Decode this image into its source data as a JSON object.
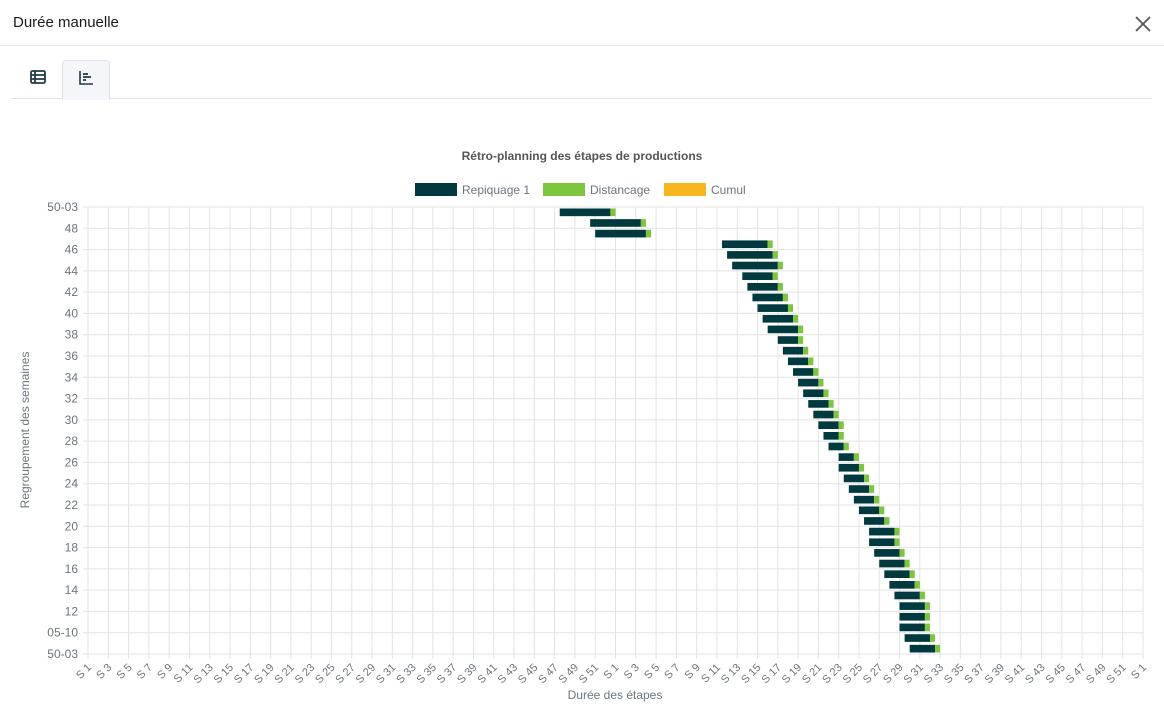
{
  "window": {
    "title": "Durée manuelle"
  },
  "tabs": [
    {
      "icon": "table-icon",
      "active": false
    },
    {
      "icon": "bar-chart-icon",
      "active": true
    }
  ],
  "colors": {
    "repiquage": "#003a40",
    "distancage": "#7dc63c",
    "cumul": "#f9b51d",
    "grid": "#e3e3e3",
    "text": "#6c757d"
  },
  "chart_data": {
    "type": "bar",
    "orientation": "horizontal-floating",
    "title": "Rétro-planning des étapes de productions",
    "xlabel": "Durée des étapes",
    "ylabel": "Regroupement des semaines",
    "legend": [
      {
        "name": "Repiquage 1"
      },
      {
        "name": "Distancage"
      },
      {
        "name": "Cumul"
      }
    ],
    "legend_position": "top-center",
    "grid": true,
    "x_ticks": [
      "S 1",
      "S 3",
      "S 5",
      "S 7",
      "S 9",
      "S 11",
      "S 13",
      "S 15",
      "S 17",
      "S 19",
      "S 21",
      "S 23",
      "S 25",
      "S 27",
      "S 29",
      "S 31",
      "S 33",
      "S 35",
      "S 37",
      "S 39",
      "S 41",
      "S 43",
      "S 45",
      "S 47",
      "S 49",
      "S 51",
      "S 1",
      "S 3",
      "S 5",
      "S 7",
      "S 9",
      "S 11",
      "S 13",
      "S 15",
      "S 17",
      "S 19",
      "S 21",
      "S 23",
      "S 25",
      "S 27",
      "S 29",
      "S 31",
      "S 33",
      "S 35",
      "S 37",
      "S 39",
      "S 41",
      "S 43",
      "S 45",
      "S 47",
      "S 49",
      "S 51",
      "S 1"
    ],
    "y_ticks": [
      "50-03",
      "48",
      "46",
      "44",
      "42",
      "40",
      "38",
      "36",
      "34",
      "32",
      "30",
      "28",
      "26",
      "24",
      "22",
      "20",
      "18",
      "16",
      "14",
      "12",
      "05-10",
      "50-03"
    ],
    "rows": [
      {
        "repiquage": [
          46.5,
          51.5
        ],
        "distancage": [
          51.5,
          52
        ]
      },
      {
        "repiquage": [
          49.5,
          54.5
        ],
        "distancage": [
          54.5,
          55
        ]
      },
      {
        "repiquage": [
          50,
          55
        ],
        "distancage": [
          55,
          55.5
        ]
      },
      {
        "repiquage": [
          62.5,
          67
        ],
        "distancage": [
          67,
          67.5
        ]
      },
      {
        "repiquage": [
          63,
          67.5
        ],
        "distancage": [
          67.5,
          68
        ]
      },
      {
        "repiquage": [
          63.5,
          68
        ],
        "distancage": [
          68,
          68.5
        ]
      },
      {
        "repiquage": [
          64.5,
          67.5
        ],
        "distancage": [
          67.5,
          68
        ]
      },
      {
        "repiquage": [
          65,
          68
        ],
        "distancage": [
          68,
          68.5
        ]
      },
      {
        "repiquage": [
          65.5,
          68.5
        ],
        "distancage": [
          68.5,
          69
        ]
      },
      {
        "repiquage": [
          66,
          69
        ],
        "distancage": [
          69,
          69.5
        ]
      },
      {
        "repiquage": [
          66.5,
          69.5
        ],
        "distancage": [
          69.5,
          70
        ]
      },
      {
        "repiquage": [
          67,
          70
        ],
        "distancage": [
          70,
          70.5
        ]
      },
      {
        "repiquage": [
          68,
          70
        ],
        "distancage": [
          70,
          70.5
        ]
      },
      {
        "repiquage": [
          68.5,
          70.5
        ],
        "distancage": [
          70.5,
          71
        ]
      },
      {
        "repiquage": [
          69,
          71
        ],
        "distancage": [
          71,
          71.5
        ]
      },
      {
        "repiquage": [
          69.5,
          71.5
        ],
        "distancage": [
          71.5,
          72
        ]
      },
      {
        "repiquage": [
          70,
          72
        ],
        "distancage": [
          72,
          72.5
        ]
      },
      {
        "repiquage": [
          70.5,
          72.5
        ],
        "distancage": [
          72.5,
          73
        ]
      },
      {
        "repiquage": [
          71,
          73
        ],
        "distancage": [
          73,
          73.5
        ]
      },
      {
        "repiquage": [
          71.5,
          73.5
        ],
        "distancage": [
          73.5,
          74
        ]
      },
      {
        "repiquage": [
          72,
          74
        ],
        "distancage": [
          74,
          74.5
        ]
      },
      {
        "repiquage": [
          72.5,
          74
        ],
        "distancage": [
          74,
          74.5
        ]
      },
      {
        "repiquage": [
          73,
          74.5
        ],
        "distancage": [
          74.5,
          75
        ]
      },
      {
        "repiquage": [
          74,
          75.5
        ],
        "distancage": [
          75.5,
          76
        ]
      },
      {
        "repiquage": [
          74,
          76
        ],
        "distancage": [
          76,
          76.5
        ]
      },
      {
        "repiquage": [
          74.5,
          76.5
        ],
        "distancage": [
          76.5,
          77
        ]
      },
      {
        "repiquage": [
          75,
          77
        ],
        "distancage": [
          77,
          77.5
        ]
      },
      {
        "repiquage": [
          75.5,
          77.5
        ],
        "distancage": [
          77.5,
          78
        ]
      },
      {
        "repiquage": [
          76,
          78
        ],
        "distancage": [
          78,
          78.5
        ]
      },
      {
        "repiquage": [
          76.5,
          78.5
        ],
        "distancage": [
          78.5,
          79
        ]
      },
      {
        "repiquage": [
          77,
          79.5
        ],
        "distancage": [
          79.5,
          80
        ]
      },
      {
        "repiquage": [
          77,
          79.5
        ],
        "distancage": [
          79.5,
          80
        ]
      },
      {
        "repiquage": [
          77.5,
          80
        ],
        "distancage": [
          80,
          80.5
        ]
      },
      {
        "repiquage": [
          78,
          80.5
        ],
        "distancage": [
          80.5,
          81
        ]
      },
      {
        "repiquage": [
          78.5,
          81
        ],
        "distancage": [
          81,
          81.5
        ]
      },
      {
        "repiquage": [
          79,
          81.5
        ],
        "distancage": [
          81.5,
          82
        ]
      },
      {
        "repiquage": [
          79.5,
          82
        ],
        "distancage": [
          82,
          82.5
        ]
      },
      {
        "repiquage": [
          80,
          82.5
        ],
        "distancage": [
          82.5,
          83
        ]
      },
      {
        "repiquage": [
          80,
          82.5
        ],
        "distancage": [
          82.5,
          83
        ]
      },
      {
        "repiquage": [
          80,
          82.5
        ],
        "distancage": [
          82.5,
          83
        ]
      },
      {
        "repiquage": [
          80.5,
          83
        ],
        "distancage": [
          83,
          83.5
        ]
      },
      {
        "repiquage": [
          81,
          83.5
        ],
        "distancage": [
          83.5,
          84
        ]
      }
    ]
  }
}
